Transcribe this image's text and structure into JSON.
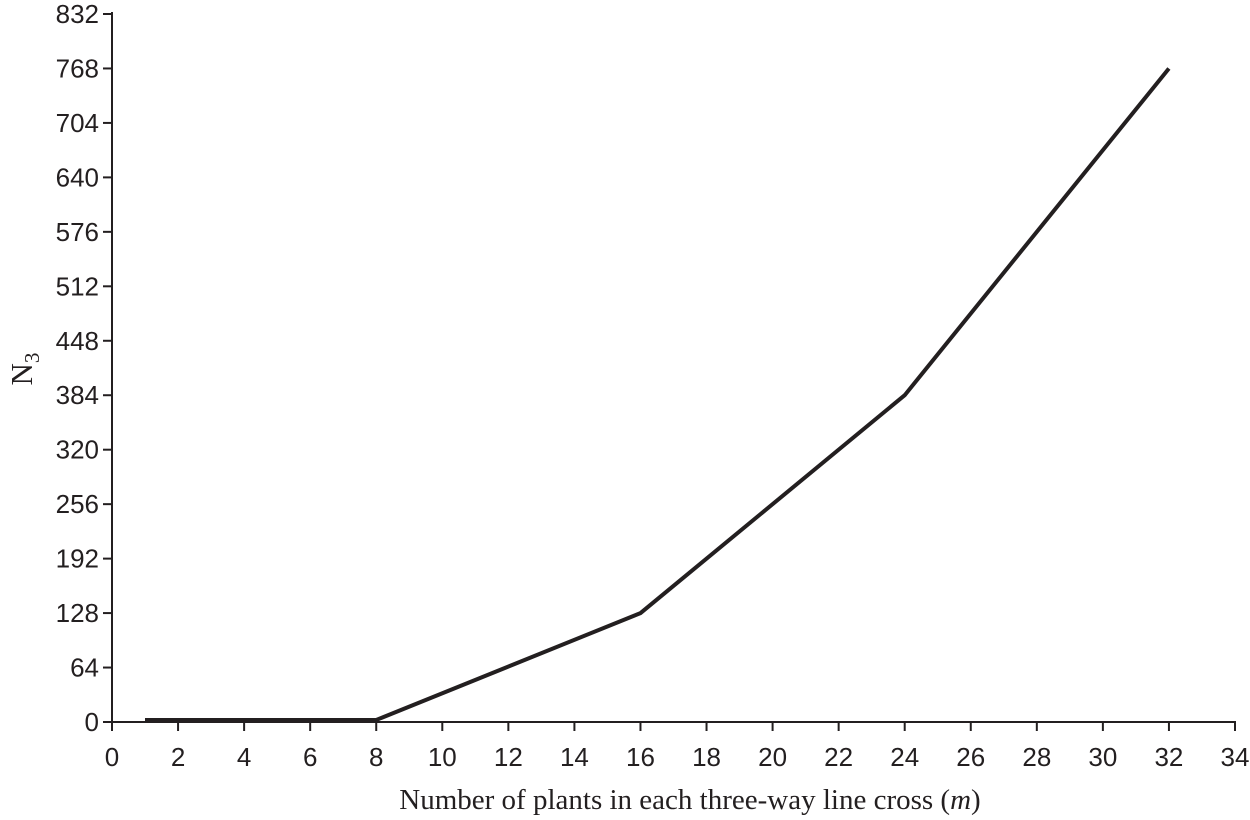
{
  "chart_data": {
    "type": "line",
    "title": "",
    "xlabel": "Number of plants in each three-way line cross (m)",
    "xlabel_prefix": "Number of plants in each three-way line cross (",
    "xlabel_var": "m",
    "xlabel_suffix": ")",
    "ylabel_base": "N",
    "ylabel_sub": "3",
    "xlim": [
      0,
      34
    ],
    "ylim": [
      0,
      832
    ],
    "x_ticks": [
      0,
      2,
      4,
      6,
      8,
      10,
      12,
      14,
      16,
      18,
      20,
      22,
      24,
      26,
      28,
      30,
      32,
      34
    ],
    "y_ticks": [
      0,
      64,
      128,
      192,
      256,
      320,
      384,
      448,
      512,
      576,
      640,
      704,
      768,
      832
    ],
    "grid": false,
    "legend": "none",
    "background_color": "#ffffff",
    "axis_color": "#231f20",
    "line_color": "#231f20",
    "series": [
      {
        "name": "N3",
        "points": [
          [
            1,
            0
          ],
          [
            8,
            0
          ],
          [
            16,
            128
          ],
          [
            24,
            384
          ],
          [
            32,
            768
          ]
        ]
      }
    ]
  }
}
